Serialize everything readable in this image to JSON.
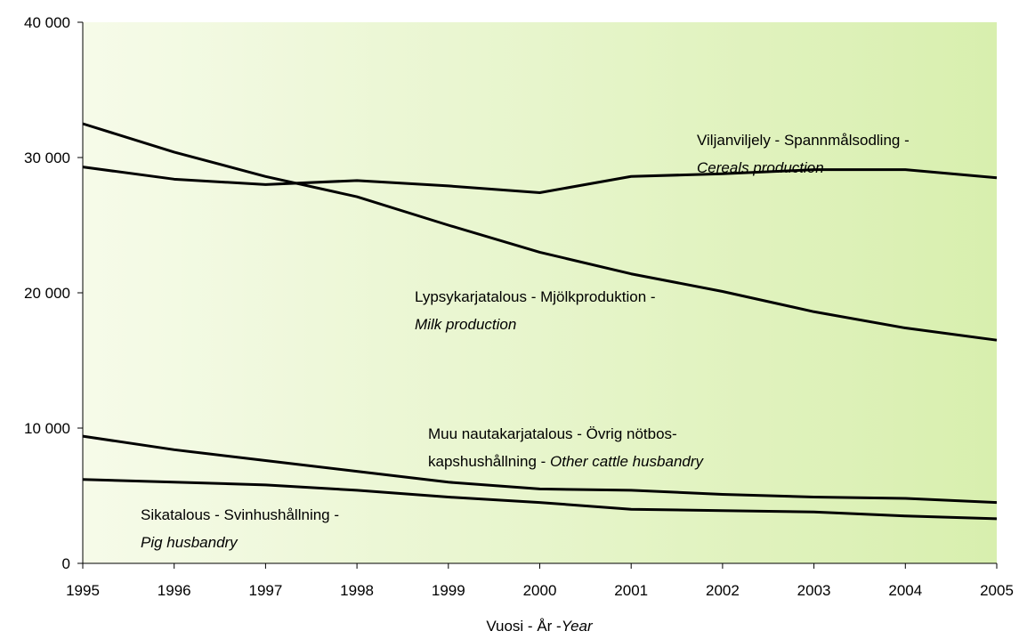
{
  "chart_data": {
    "type": "line",
    "x": [
      1995,
      1996,
      1997,
      1998,
      1999,
      2000,
      2001,
      2002,
      2003,
      2004,
      2005
    ],
    "xlim": [
      1995,
      2005
    ],
    "xticks": [
      1995,
      1996,
      1997,
      1998,
      1999,
      2000,
      2001,
      2002,
      2003,
      2004,
      2005
    ],
    "ylim": [
      0,
      40000
    ],
    "yticks": [
      0,
      {
        "value": 10000,
        "label": "10 000"
      },
      {
        "value": 20000,
        "label": "20 000"
      },
      {
        "value": 30000,
        "label": "30 000"
      },
      {
        "value": 40000,
        "label": "40 000"
      }
    ],
    "xlabel": [
      {
        "text": "Vuosi - År -"
      },
      {
        "text": "Year",
        "italic": true
      }
    ],
    "series": [
      {
        "color": "#000000",
        "values": [
          29300,
          28400,
          28000,
          28300,
          27900,
          27400,
          28600,
          28800,
          29100,
          29100,
          28500
        ]
      },
      {
        "color": "#000000",
        "values": [
          32500,
          30400,
          28600,
          27100,
          25000,
          23000,
          21400,
          20100,
          18600,
          17400,
          16500
        ]
      },
      {
        "color": "#000000",
        "values": [
          9400,
          8400,
          7600,
          6800,
          6000,
          5500,
          5400,
          5100,
          4900,
          4800,
          4500
        ]
      },
      {
        "color": "#000000",
        "values": [
          6200,
          6000,
          5800,
          5400,
          4900,
          4500,
          4000,
          3900,
          3800,
          3500,
          3300
        ]
      }
    ],
    "annotations": [
      {
        "lines": [
          [
            {
              "text": "Viljanviljely - Spannmålsodling -"
            }
          ],
          [
            {
              "text": "Cereals production",
              "italic": true
            }
          ]
        ]
      },
      {
        "lines": [
          [
            {
              "text": "Lypsykarjatalous - Mjölkproduktion -"
            }
          ],
          [
            {
              "text": "Milk production",
              "italic": true
            }
          ]
        ]
      },
      {
        "lines": [
          [
            {
              "text": "Muu nautakarjatalous - Övrig nötbos-"
            }
          ],
          [
            {
              "text": "kapshushållning - "
            },
            {
              "text": "Other cattle husbandry",
              "italic": true
            }
          ]
        ]
      },
      {
        "lines": [
          [
            {
              "text": "Sikatalous - Svinhushållning -"
            }
          ],
          [
            {
              "text": "Pig husbandry",
              "italic": true
            }
          ]
        ]
      }
    ]
  }
}
